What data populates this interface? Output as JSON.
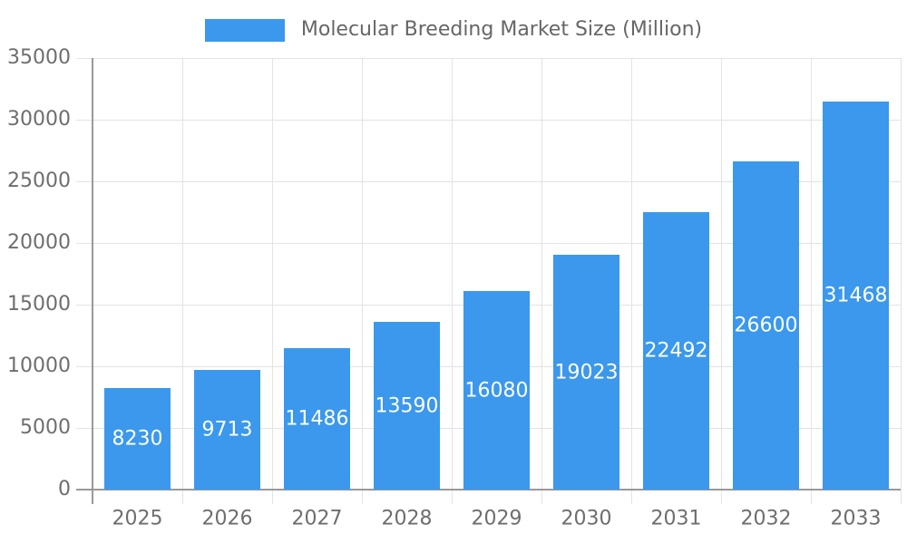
{
  "chart_data": {
    "type": "bar",
    "title": "Molecular Breeding Market Size (Million)",
    "legend_position": "top-center",
    "categories": [
      "2025",
      "2026",
      "2027",
      "2028",
      "2029",
      "2030",
      "2031",
      "2032",
      "2033"
    ],
    "series": [
      {
        "name": "Molecular Breeding Market Size (Million)",
        "values": [
          8230,
          9713,
          11486,
          13590,
          16080,
          19023,
          22492,
          26600,
          31468
        ]
      }
    ],
    "xlabel": "",
    "ylabel": "",
    "ylim": [
      0,
      35000
    ],
    "ytick_step": 5000,
    "ytick_labels": [
      "0",
      "5000",
      "10000",
      "15000",
      "20000",
      "25000",
      "30000",
      "35000"
    ],
    "grid": true,
    "value_labels": "inside-center",
    "colors": {
      "bar": "#3B98EC",
      "value_label": "#FFFFFF",
      "axis_line": "#999999",
      "gridline": "#E3E3E3",
      "tick_label": "#6E6E6E",
      "legend_text": "#666666",
      "background": "#FFFFFF"
    }
  }
}
